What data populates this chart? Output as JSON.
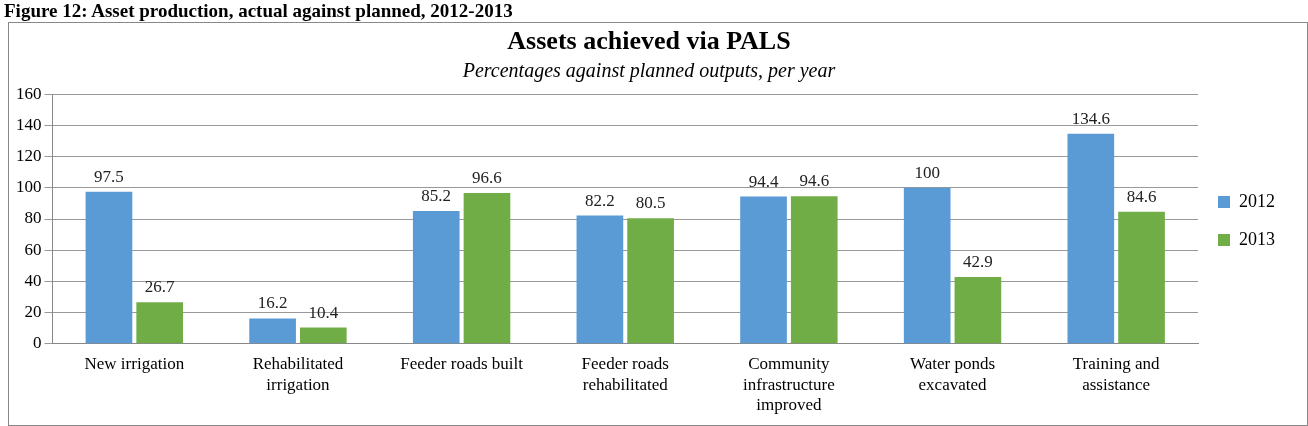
{
  "chart_data": {
    "type": "bar",
    "title": "Assets achieved via PALS",
    "subtitle": "Percentages against planned outputs, per year",
    "annotations": [
      "Figure 12: Asset production, actual against planned, 2012-2013"
    ],
    "categories": [
      "New irrigation",
      "Rehabilitated irrigation",
      "Feeder roads built",
      "Feeder roads rehabilitated",
      "Community infrastructure improved",
      "Water ponds excavated",
      "Training and assistance"
    ],
    "series": [
      {
        "name": "2012",
        "color": "#5b9bd5",
        "values": [
          97.5,
          16.2,
          85.2,
          82.2,
          94.4,
          100,
          134.6
        ]
      },
      {
        "name": "2013",
        "color": "#70ad47",
        "values": [
          26.7,
          10.4,
          96.6,
          80.5,
          94.6,
          42.9,
          84.6
        ]
      }
    ],
    "ylim": [
      0,
      160
    ],
    "yticks": [
      0,
      20,
      40,
      60,
      80,
      100,
      120,
      140,
      160
    ],
    "grid": "y",
    "legend": "right",
    "data_labels": true
  }
}
